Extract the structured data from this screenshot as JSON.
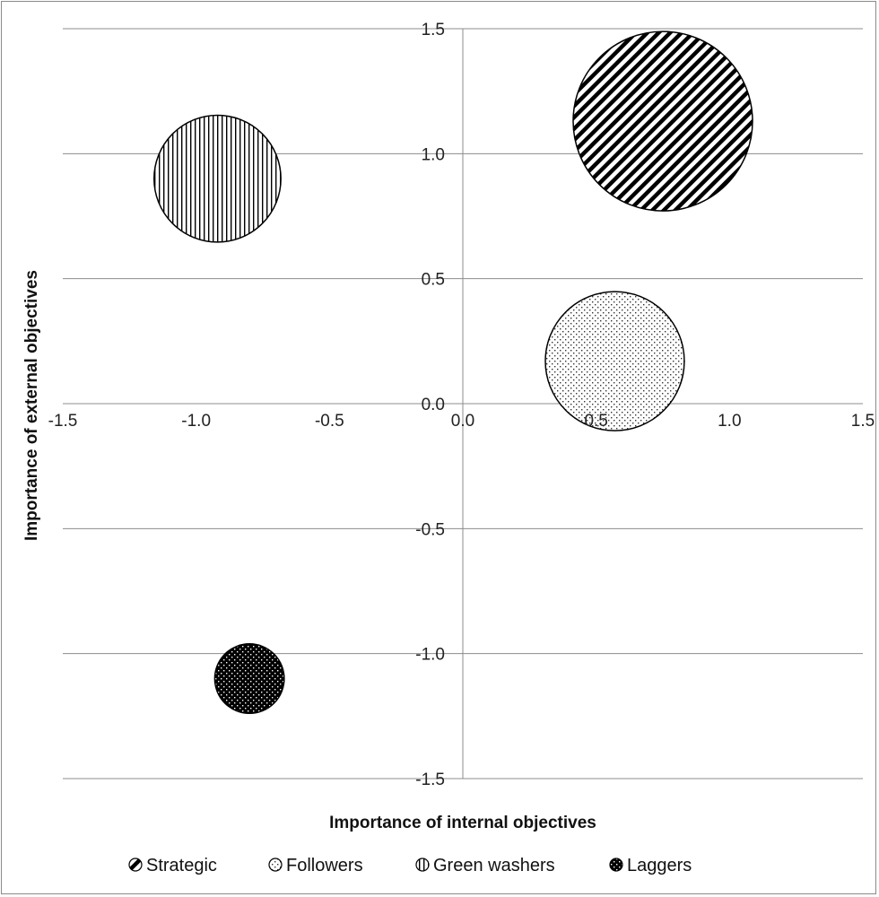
{
  "chart_data": {
    "type": "bubble",
    "title": "",
    "xlabel": "Importance of internal objectives",
    "ylabel": "Importance of external objectives",
    "xlim": [
      -1.5,
      1.5
    ],
    "ylim": [
      -1.5,
      1.5
    ],
    "x_ticks": [
      "-1.5",
      "-1.0",
      "-0.5",
      "0.0",
      "0.5",
      "1.0",
      "1.5"
    ],
    "y_ticks": [
      "-1.5",
      "-1.0",
      "-0.5",
      "0.0",
      "0.5",
      "1.0",
      "1.5"
    ],
    "grid": "horizontal major gridlines",
    "legend_position": "bottom",
    "series": [
      {
        "name": "Strategic",
        "x": 0.75,
        "y": 1.13,
        "size": 1.0,
        "pattern": "diagonal-stripes",
        "color": "#000000"
      },
      {
        "name": "Followers",
        "x": 0.57,
        "y": 0.17,
        "size": 0.6,
        "pattern": "dots",
        "color": "#555555"
      },
      {
        "name": "Green washers",
        "x": -0.92,
        "y": 0.9,
        "size": 0.5,
        "pattern": "vertical-stripes",
        "color": "#000000"
      },
      {
        "name": "Laggers",
        "x": -0.8,
        "y": -1.1,
        "size": 0.15,
        "pattern": "dark-dots",
        "color": "#000000"
      }
    ]
  }
}
